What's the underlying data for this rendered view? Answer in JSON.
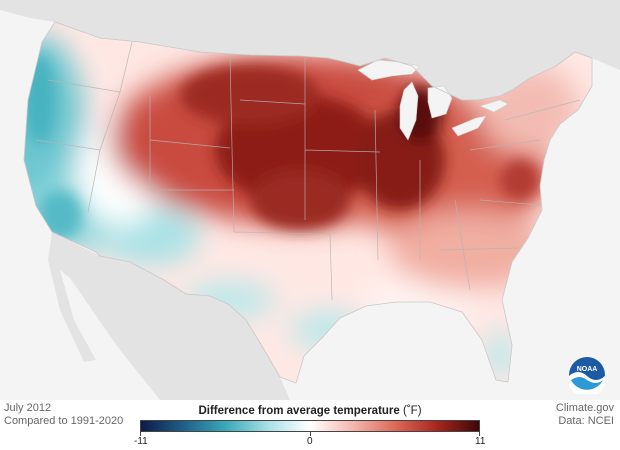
{
  "caption": {
    "month": "July 2012",
    "baseline": "Compared to 1991-2020"
  },
  "credits": {
    "site": "Climate.gov",
    "source": "Data: NCEI"
  },
  "legend": {
    "title": "Difference from average temperature",
    "unit": "(˚F)",
    "min_label": "-11",
    "mid_label": "0",
    "max_label": "11",
    "colors": [
      "#0d1a4a",
      "#1f5f88",
      "#3aa8b8",
      "#a6e0e6",
      "#ffffff",
      "#f4b8ae",
      "#dd6a5a",
      "#a8261f",
      "#3d0808"
    ]
  },
  "logo": {
    "label": "NOAA"
  },
  "map": {
    "colors": {
      "land": "#ffffff",
      "ocean": "#f4f4f4",
      "neighbor_land": "#e3e3e3",
      "lakes": "#f4f4f4",
      "borders": "#b5b5b5"
    }
  }
}
